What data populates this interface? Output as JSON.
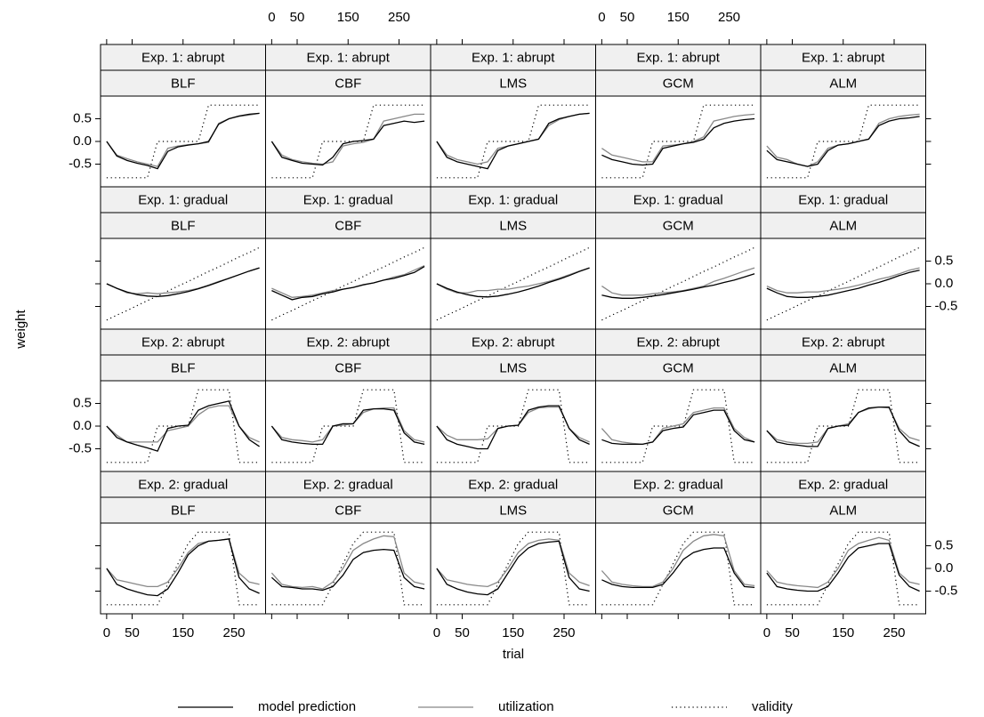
{
  "chart_data": {
    "type": "line",
    "xlabel": "trial",
    "ylabel": "weight",
    "x": [
      0,
      20,
      40,
      60,
      80,
      100,
      120,
      140,
      160,
      180,
      200,
      220,
      240,
      260,
      280,
      300
    ],
    "xlim": [
      -12,
      312
    ],
    "ylim": [
      -1,
      1
    ],
    "xticks": [
      0,
      50,
      150,
      250
    ],
    "yticks": [
      -0.5,
      {
        "value": 0,
        "label": "0.0"
      },
      0.5
    ],
    "legend": [
      {
        "name": "model prediction",
        "color": "#000000",
        "style": "solid"
      },
      {
        "name": "utilization",
        "color": "#888888",
        "style": "solid"
      },
      {
        "name": "validity",
        "color": "#000000",
        "style": "dotted"
      }
    ],
    "rows": [
      {
        "condition": "Exp. 1: abrupt",
        "validity": [
          -0.8,
          -0.8,
          -0.8,
          -0.8,
          -0.8,
          0,
          0,
          0,
          0,
          0,
          0.8,
          0.8,
          0.8,
          0.8,
          0.8,
          0.8
        ],
        "panels": [
          {
            "model": "BLF",
            "prediction": [
              0,
              -0.32,
              -0.42,
              -0.48,
              -0.53,
              -0.6,
              -0.22,
              -0.12,
              -0.08,
              -0.05,
              0,
              0.38,
              0.5,
              0.56,
              0.6,
              0.62
            ],
            "utilization": [
              0,
              -0.3,
              -0.38,
              -0.45,
              -0.5,
              -0.55,
              -0.15,
              -0.1,
              -0.07,
              -0.05,
              -0.02,
              0.4,
              0.5,
              0.55,
              0.58,
              0.62
            ]
          },
          {
            "model": "CBF",
            "prediction": [
              0,
              -0.35,
              -0.42,
              -0.48,
              -0.5,
              -0.52,
              -0.35,
              -0.05,
              0,
              0.02,
              0.05,
              0.35,
              0.4,
              0.45,
              0.42,
              0.45
            ],
            "utilization": [
              0,
              -0.3,
              -0.4,
              -0.45,
              -0.48,
              -0.5,
              -0.45,
              -0.1,
              -0.05,
              -0.02,
              0.05,
              0.45,
              0.5,
              0.55,
              0.6,
              0.6
            ]
          },
          {
            "model": "LMS",
            "prediction": [
              0,
              -0.35,
              -0.45,
              -0.5,
              -0.55,
              -0.6,
              -0.2,
              -0.1,
              -0.05,
              0,
              0.05,
              0.4,
              0.5,
              0.55,
              0.6,
              0.62
            ],
            "utilization": [
              0,
              -0.3,
              -0.4,
              -0.45,
              -0.5,
              -0.45,
              -0.15,
              -0.1,
              -0.05,
              0,
              0.05,
              0.35,
              0.48,
              0.55,
              0.6,
              0.62
            ]
          },
          {
            "model": "GCM",
            "prediction": [
              -0.3,
              -0.4,
              -0.45,
              -0.5,
              -0.52,
              -0.5,
              -0.15,
              -0.1,
              -0.05,
              -0.02,
              0.05,
              0.3,
              0.4,
              0.45,
              0.48,
              0.5
            ],
            "utilization": [
              -0.15,
              -0.3,
              -0.35,
              -0.4,
              -0.45,
              -0.45,
              -0.1,
              -0.08,
              -0.05,
              0,
              0.1,
              0.45,
              0.5,
              0.55,
              0.58,
              0.6
            ]
          },
          {
            "model": "ALM",
            "prediction": [
              -0.2,
              -0.4,
              -0.45,
              -0.5,
              -0.55,
              -0.5,
              -0.2,
              -0.08,
              -0.05,
              0,
              0.05,
              0.35,
              0.45,
              0.5,
              0.52,
              0.55
            ],
            "utilization": [
              -0.1,
              -0.35,
              -0.4,
              -0.5,
              -0.55,
              -0.45,
              -0.15,
              -0.08,
              -0.05,
              0,
              0.05,
              0.4,
              0.5,
              0.55,
              0.58,
              0.6
            ]
          }
        ]
      },
      {
        "condition": "Exp. 1: gradual",
        "validity": [
          -0.8,
          -0.69,
          -0.59,
          -0.48,
          -0.37,
          -0.27,
          -0.16,
          -0.05,
          0.05,
          0.16,
          0.27,
          0.37,
          0.48,
          0.59,
          0.69,
          0.8
        ],
        "panels": [
          {
            "model": "BLF",
            "prediction": [
              0,
              -0.1,
              -0.18,
              -0.24,
              -0.27,
              -0.28,
              -0.26,
              -0.22,
              -0.17,
              -0.11,
              -0.04,
              0.04,
              0.12,
              0.2,
              0.28,
              0.35
            ],
            "utilization": [
              0,
              -0.1,
              -0.2,
              -0.22,
              -0.2,
              -0.22,
              -0.2,
              -0.18,
              -0.15,
              -0.1,
              -0.03,
              0.05,
              0.12,
              0.2,
              0.28,
              0.35
            ]
          },
          {
            "model": "CBF",
            "prediction": [
              -0.15,
              -0.25,
              -0.35,
              -0.3,
              -0.28,
              -0.22,
              -0.18,
              -0.12,
              -0.08,
              -0.02,
              0.02,
              0.08,
              0.12,
              0.18,
              0.25,
              0.38
            ],
            "utilization": [
              -0.1,
              -0.2,
              -0.3,
              -0.28,
              -0.25,
              -0.2,
              -0.15,
              -0.12,
              -0.08,
              -0.03,
              0.02,
              0.08,
              0.15,
              0.2,
              0.3,
              0.4
            ]
          },
          {
            "model": "LMS",
            "prediction": [
              0,
              -0.1,
              -0.18,
              -0.24,
              -0.28,
              -0.29,
              -0.27,
              -0.23,
              -0.18,
              -0.12,
              -0.05,
              0.03,
              0.1,
              0.18,
              0.27,
              0.35
            ],
            "utilization": [
              0,
              -0.12,
              -0.2,
              -0.2,
              -0.15,
              -0.15,
              -0.12,
              -0.12,
              -0.08,
              -0.05,
              0,
              0.05,
              0.12,
              0.2,
              0.28,
              0.35
            ]
          },
          {
            "model": "GCM",
            "prediction": [
              -0.25,
              -0.3,
              -0.32,
              -0.32,
              -0.3,
              -0.27,
              -0.24,
              -0.2,
              -0.16,
              -0.12,
              -0.07,
              -0.03,
              0.03,
              0.08,
              0.15,
              0.22
            ],
            "utilization": [
              -0.05,
              -0.2,
              -0.25,
              -0.25,
              -0.25,
              -0.22,
              -0.2,
              -0.18,
              -0.15,
              -0.1,
              -0.05,
              0.05,
              0.12,
              0.2,
              0.28,
              0.35
            ]
          },
          {
            "model": "ALM",
            "prediction": [
              -0.1,
              -0.2,
              -0.28,
              -0.3,
              -0.3,
              -0.28,
              -0.25,
              -0.2,
              -0.15,
              -0.1,
              -0.03,
              0.03,
              0.1,
              0.18,
              0.25,
              0.3
            ],
            "utilization": [
              -0.05,
              -0.15,
              -0.2,
              -0.2,
              -0.18,
              -0.18,
              -0.15,
              -0.12,
              -0.08,
              -0.03,
              0.03,
              0.1,
              0.15,
              0.22,
              0.3,
              0.35
            ]
          }
        ]
      },
      {
        "condition": "Exp. 2: abrupt",
        "validity": [
          -0.8,
          -0.8,
          -0.8,
          -0.8,
          -0.8,
          0,
          0,
          0,
          0,
          0.8,
          0.8,
          0.8,
          0.8,
          -0.8,
          -0.8,
          -0.8
        ],
        "panels": [
          {
            "model": "BLF",
            "prediction": [
              0,
              -0.25,
              -0.35,
              -0.42,
              -0.48,
              -0.55,
              -0.05,
              0,
              0.02,
              0.35,
              0.45,
              0.5,
              0.55,
              0,
              -0.3,
              -0.45
            ],
            "utilization": [
              0,
              -0.2,
              -0.35,
              -0.35,
              -0.35,
              -0.35,
              -0.1,
              -0.05,
              0,
              0.25,
              0.4,
              0.45,
              0.45,
              0,
              -0.25,
              -0.35
            ]
          },
          {
            "model": "CBF",
            "prediction": [
              0,
              -0.3,
              -0.35,
              -0.38,
              -0.4,
              -0.4,
              0,
              0.05,
              0.05,
              0.35,
              0.38,
              0.38,
              0.35,
              -0.15,
              -0.35,
              -0.4
            ],
            "utilization": [
              0,
              -0.25,
              -0.3,
              -0.32,
              -0.35,
              -0.3,
              0,
              0.02,
              0.05,
              0.3,
              0.38,
              0.4,
              0.4,
              -0.1,
              -0.3,
              -0.35
            ]
          },
          {
            "model": "LMS",
            "prediction": [
              0,
              -0.3,
              -0.4,
              -0.45,
              -0.5,
              -0.5,
              -0.05,
              0,
              0.02,
              0.35,
              0.42,
              0.45,
              0.45,
              -0.05,
              -0.3,
              -0.4
            ],
            "utilization": [
              0,
              -0.2,
              -0.3,
              -0.3,
              -0.3,
              -0.28,
              -0.05,
              0,
              0.02,
              0.3,
              0.4,
              0.42,
              0.42,
              -0.05,
              -0.25,
              -0.35
            ]
          },
          {
            "model": "GCM",
            "prediction": [
              -0.3,
              -0.38,
              -0.4,
              -0.4,
              -0.4,
              -0.35,
              -0.1,
              -0.05,
              -0.02,
              0.25,
              0.3,
              0.35,
              0.35,
              -0.1,
              -0.3,
              -0.35
            ],
            "utilization": [
              -0.05,
              -0.3,
              -0.35,
              -0.38,
              -0.4,
              -0.35,
              -0.05,
              0,
              0.05,
              0.3,
              0.35,
              0.4,
              0.4,
              -0.05,
              -0.25,
              -0.35
            ]
          },
          {
            "model": "ALM",
            "prediction": [
              -0.1,
              -0.35,
              -0.4,
              -0.42,
              -0.45,
              -0.45,
              -0.05,
              0,
              0.02,
              0.3,
              0.4,
              0.42,
              0.42,
              -0.1,
              -0.35,
              -0.45
            ],
            "utilization": [
              -0.1,
              -0.3,
              -0.35,
              -0.38,
              -0.38,
              -0.35,
              -0.05,
              0,
              0.05,
              0.3,
              0.38,
              0.42,
              0.4,
              -0.05,
              -0.25,
              -0.32
            ]
          }
        ]
      },
      {
        "condition": "Exp. 2: gradual",
        "validity": [
          -0.8,
          -0.8,
          -0.8,
          -0.8,
          -0.8,
          -0.8,
          -0.35,
          0.1,
          0.55,
          0.8,
          0.8,
          0.8,
          0.8,
          -0.8,
          -0.8,
          -0.8
        ],
        "panels": [
          {
            "model": "BLF",
            "prediction": [
              0,
              -0.35,
              -0.45,
              -0.52,
              -0.58,
              -0.6,
              -0.45,
              -0.1,
              0.3,
              0.5,
              0.6,
              0.62,
              0.65,
              -0.2,
              -0.45,
              -0.55
            ],
            "utilization": [
              0,
              -0.25,
              -0.3,
              -0.35,
              -0.4,
              -0.4,
              -0.3,
              0,
              0.35,
              0.55,
              0.6,
              0.62,
              0.65,
              -0.1,
              -0.3,
              -0.35
            ]
          },
          {
            "model": "CBF",
            "prediction": [
              -0.2,
              -0.4,
              -0.42,
              -0.45,
              -0.45,
              -0.48,
              -0.4,
              -0.15,
              0.2,
              0.35,
              0.4,
              0.42,
              0.4,
              -0.2,
              -0.4,
              -0.45
            ],
            "utilization": [
              -0.1,
              -0.35,
              -0.4,
              -0.42,
              -0.4,
              -0.45,
              -0.3,
              0,
              0.4,
              0.55,
              0.65,
              0.72,
              0.7,
              -0.1,
              -0.3,
              -0.35
            ]
          },
          {
            "model": "LMS",
            "prediction": [
              0,
              -0.35,
              -0.45,
              -0.52,
              -0.56,
              -0.58,
              -0.45,
              -0.1,
              0.25,
              0.45,
              0.55,
              0.58,
              0.6,
              -0.2,
              -0.45,
              -0.5
            ],
            "utilization": [
              0,
              -0.25,
              -0.3,
              -0.35,
              -0.38,
              -0.4,
              -0.3,
              0,
              0.35,
              0.55,
              0.62,
              0.65,
              0.62,
              -0.1,
              -0.3,
              -0.38
            ]
          },
          {
            "model": "GCM",
            "prediction": [
              -0.25,
              -0.35,
              -0.4,
              -0.42,
              -0.42,
              -0.42,
              -0.35,
              -0.1,
              0.2,
              0.35,
              0.42,
              0.45,
              0.45,
              -0.1,
              -0.4,
              -0.42
            ],
            "utilization": [
              -0.05,
              -0.3,
              -0.35,
              -0.38,
              -0.4,
              -0.4,
              -0.3,
              0,
              0.4,
              0.6,
              0.72,
              0.75,
              0.72,
              -0.05,
              -0.35,
              -0.38
            ]
          },
          {
            "model": "ALM",
            "prediction": [
              -0.1,
              -0.4,
              -0.45,
              -0.48,
              -0.5,
              -0.5,
              -0.4,
              -0.1,
              0.25,
              0.45,
              0.5,
              0.55,
              0.55,
              -0.15,
              -0.4,
              -0.5
            ],
            "utilization": [
              -0.05,
              -0.3,
              -0.35,
              -0.38,
              -0.4,
              -0.42,
              -0.3,
              0,
              0.4,
              0.55,
              0.62,
              0.68,
              0.62,
              -0.1,
              -0.3,
              -0.35
            ]
          }
        ]
      }
    ]
  }
}
